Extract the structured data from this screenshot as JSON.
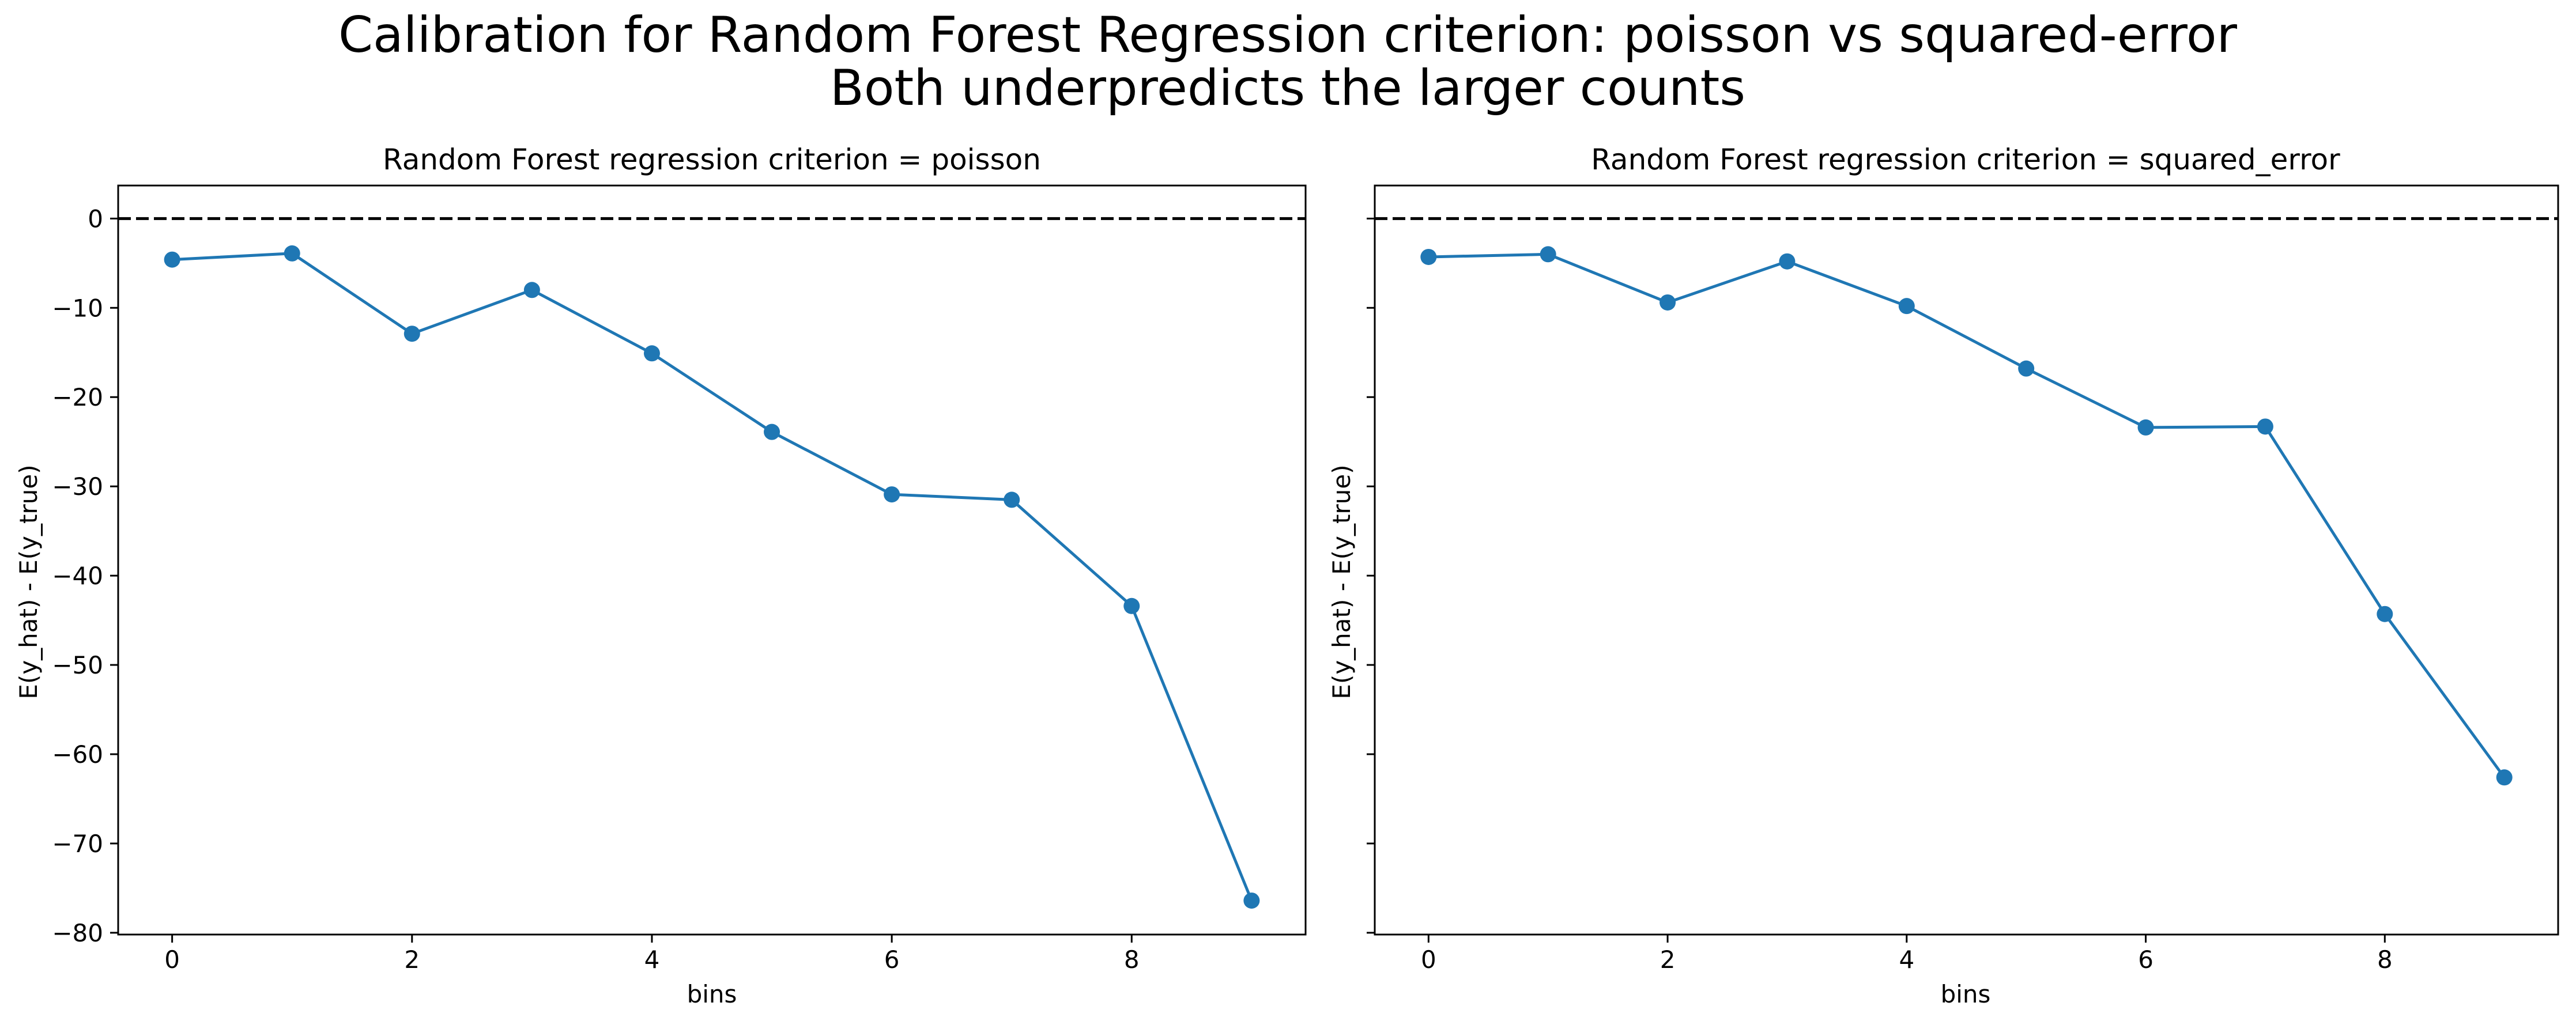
{
  "figure": {
    "title_line1": "Calibration for Random Forest Regression  criterion: poisson vs squared-error",
    "title_line2": "Both underpredicts the larger counts"
  },
  "colors": {
    "series": "#1f77b4",
    "reference": "#000000"
  },
  "chart_data": [
    {
      "type": "line",
      "title": "Random Forest regression criterion = poisson",
      "xlabel": "bins",
      "ylabel": "E(y_hat) - E(y_true)",
      "x": [
        0,
        1,
        2,
        3,
        4,
        5,
        6,
        7,
        8,
        9
      ],
      "series": [
        {
          "values": [
            -4.6,
            -3.9,
            -12.9,
            -8.0,
            -15.1,
            -23.9,
            -30.9,
            -31.5,
            -43.4,
            -76.4
          ],
          "marker": "circle"
        }
      ],
      "reference_line": {
        "y": 0,
        "style": "dashed"
      },
      "xticks": [
        "0",
        "2",
        "4",
        "6",
        "8"
      ],
      "yticks": [
        "0",
        "−10",
        "−20",
        "−30",
        "−40",
        "−50",
        "−60",
        "−70",
        "−80"
      ],
      "xlim": [
        -0.45,
        9.45
      ],
      "ylim": [
        -80.2,
        3.7
      ],
      "grid": false,
      "legend": "none"
    },
    {
      "type": "line",
      "title": "Random Forest regression criterion = squared_error",
      "xlabel": "bins",
      "ylabel": "E(y_hat) - E(y_true)",
      "x": [
        0,
        1,
        2,
        3,
        4,
        5,
        6,
        7,
        8,
        9
      ],
      "series": [
        {
          "values": [
            -4.3,
            -4.0,
            -9.4,
            -4.8,
            -9.8,
            -16.8,
            -23.4,
            -23.3,
            -44.3,
            -62.6
          ],
          "marker": "circle"
        }
      ],
      "reference_line": {
        "y": 0,
        "style": "dashed"
      },
      "xticks": [
        "0",
        "2",
        "4",
        "6",
        "8"
      ],
      "yticks_shared": true,
      "xlim": [
        -0.45,
        9.45
      ],
      "ylim": [
        -80.2,
        3.7
      ],
      "grid": false,
      "legend": "none"
    }
  ]
}
